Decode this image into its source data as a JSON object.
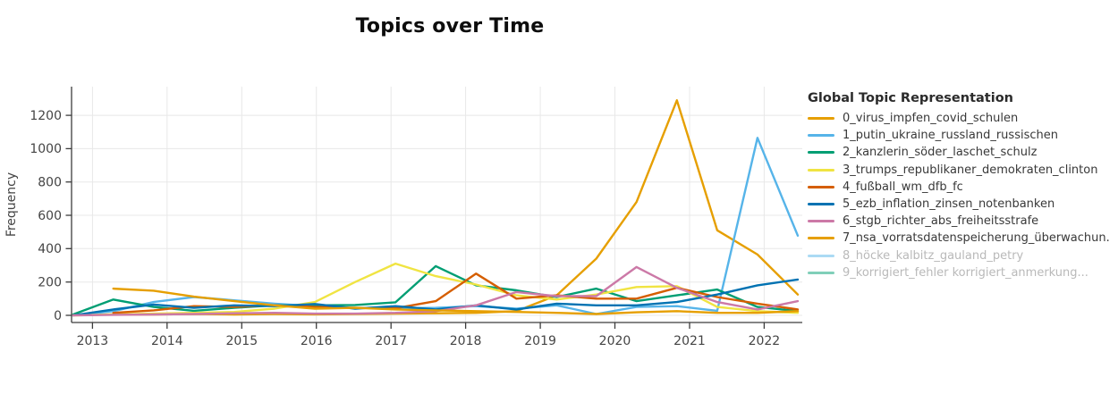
{
  "title": "Topics over Time",
  "y_axis": {
    "label": "Frequency",
    "ticks": [
      0,
      200,
      400,
      600,
      800,
      1000,
      1200
    ]
  },
  "x_axis": {
    "ticks": [
      "2013",
      "2014",
      "2015",
      "2016",
      "2017",
      "2018",
      "2019",
      "2020",
      "2021",
      "2022"
    ]
  },
  "colors": {
    "grid": "#e8e8e8",
    "axis_line": "#3c3c3c",
    "tick_text": "#444444",
    "muted_text": "#b9b9b9"
  },
  "legend": {
    "title": "Global Topic Representation",
    "items": [
      {
        "label": "0_virus_impfen_covid_schulen",
        "color": "#E69F00",
        "hidden": false
      },
      {
        "label": "1_putin_ukraine_russland_russischen",
        "color": "#56B4E9",
        "hidden": false
      },
      {
        "label": "2_kanzlerin_söder_laschet_schulz",
        "color": "#009E73",
        "hidden": false
      },
      {
        "label": "3_trumps_republikaner_demokraten_clinton",
        "color": "#F0E442",
        "hidden": false
      },
      {
        "label": "4_fußball_wm_dfb_fc",
        "color": "#D55E00",
        "hidden": false
      },
      {
        "label": "5_ezb_inflation_zinsen_notenbanken",
        "color": "#0072B2",
        "hidden": false
      },
      {
        "label": "6_stgb_richter_abs_freiheitsstrafe",
        "color": "#CC79A7",
        "hidden": false
      },
      {
        "label": "7_nsa_vorratsdatenspeicherung_überwachun.",
        "color": "#E69F00",
        "hidden": false
      },
      {
        "label": "8_höcke_kalbitz_gauland_petry",
        "color": "#ABDAF4",
        "hidden": true
      },
      {
        "label": "9_korrigiert_fehler korrigiert_anmerkung...",
        "color": "#80CFB9",
        "hidden": true
      }
    ]
  },
  "chart_data": {
    "type": "line",
    "title": "Topics over Time",
    "xlabel": "",
    "ylabel": "Frequency",
    "xlim": [
      2012.72,
      2022.51
    ],
    "ylim": [
      -43,
      1372
    ],
    "grid": true,
    "legend_position": "right",
    "x": [
      2012.74,
      2013.28,
      2013.82,
      2014.36,
      2014.9,
      2015.44,
      2015.98,
      2016.52,
      2017.06,
      2017.6,
      2018.14,
      2018.68,
      2019.22,
      2019.75,
      2020.29,
      2020.83,
      2021.37,
      2021.91,
      2022.45
    ],
    "series": [
      {
        "name": "0_virus_impfen_covid_schulen",
        "color": "#E69F00",
        "values": [
          2,
          5,
          5,
          8,
          5,
          8,
          6,
          8,
          10,
          12,
          15,
          25,
          120,
          340,
          680,
          1290,
          510,
          365,
          125
        ]
      },
      {
        "name": "1_putin_ukraine_russland_russischen",
        "color": "#56B4E9",
        "values": [
          0,
          25,
          80,
          110,
          90,
          70,
          55,
          45,
          42,
          45,
          55,
          40,
          60,
          8,
          50,
          55,
          27,
          1065,
          478
        ]
      },
      {
        "name": "2_kanzlerin_söder_laschet_schulz",
        "color": "#009E73",
        "values": [
          5,
          95,
          50,
          27,
          45,
          60,
          60,
          62,
          78,
          295,
          180,
          150,
          110,
          160,
          85,
          120,
          155,
          50,
          25
        ]
      },
      {
        "name": "3_trumps_republikaner_demokraten_clinton",
        "color": "#F0E442",
        "values": [
          0,
          5,
          10,
          15,
          20,
          40,
          80,
          200,
          310,
          235,
          185,
          120,
          95,
          125,
          170,
          175,
          50,
          25,
          15
        ]
      },
      {
        "name": "4_fußball_wm_dfb_fc",
        "color": "#D55E00",
        "values": [
          null,
          15,
          30,
          55,
          50,
          60,
          50,
          45,
          42,
          85,
          250,
          100,
          120,
          100,
          100,
          165,
          110,
          70,
          35
        ]
      },
      {
        "name": "5_ezb_inflation_zinsen_notenbanken",
        "color": "#0072B2",
        "values": [
          0,
          35,
          65,
          45,
          60,
          55,
          68,
          40,
          55,
          35,
          60,
          35,
          70,
          60,
          60,
          80,
          125,
          180,
          215
        ]
      },
      {
        "name": "6_stgb_richter_abs_freiheitsstrafe",
        "color": "#CC79A7",
        "values": [
          0,
          3,
          5,
          8,
          12,
          15,
          10,
          10,
          15,
          25,
          60,
          140,
          115,
          115,
          290,
          165,
          80,
          35,
          85
        ]
      },
      {
        "name": "7_nsa_vorratsdatenspeicherung_überwachun.",
        "color": "#E69F00",
        "values": [
          null,
          160,
          148,
          112,
          85,
          60,
          40,
          45,
          35,
          30,
          25,
          20,
          15,
          8,
          18,
          25,
          15,
          15,
          25
        ]
      }
    ]
  }
}
